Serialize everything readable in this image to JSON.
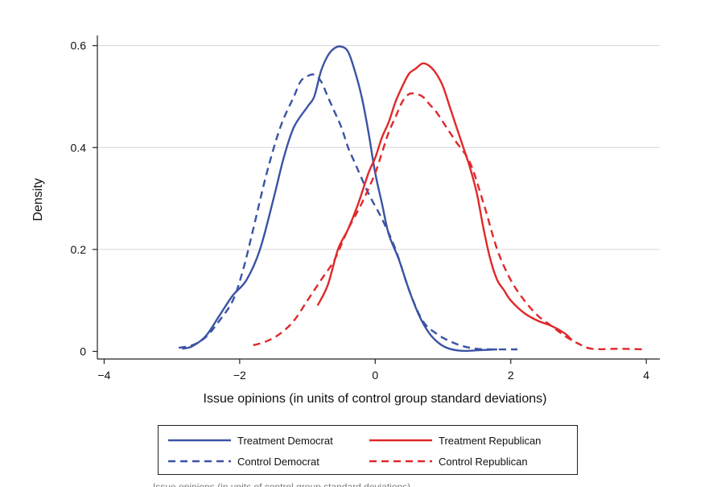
{
  "chart_data": {
    "type": "line",
    "title": "",
    "xlabel": "Issue opinions (in units of control group standard deviations)",
    "ylabel": "Density",
    "xlim": [
      -4.1,
      4.2
    ],
    "ylim": [
      -0.015,
      0.62
    ],
    "x_ticks": [
      -4,
      -2,
      0,
      2,
      4
    ],
    "x_tick_labels": [
      "−4",
      "−2",
      "0",
      "2",
      "4"
    ],
    "y_ticks": [
      0,
      0.2,
      0.4,
      0.6
    ],
    "y_tick_labels": [
      "0",
      "0.2",
      "0.4",
      "0.6"
    ],
    "grid": "horizontal",
    "legend_position": "bottom",
    "series": [
      {
        "name": "Treatment Democrat",
        "color": "#3b53a4",
        "style": "solid",
        "x": [
          -2.85,
          -2.7,
          -2.5,
          -2.3,
          -2.1,
          -1.9,
          -1.7,
          -1.5,
          -1.35,
          -1.2,
          -1.0,
          -0.9,
          -0.8,
          -0.7,
          -0.6,
          -0.5,
          -0.4,
          -0.3,
          -0.2,
          -0.1,
          0.0,
          0.1,
          0.2,
          0.35,
          0.5,
          0.65,
          0.8,
          0.95,
          1.1,
          1.3,
          1.5,
          1.8
        ],
        "y": [
          0.005,
          0.01,
          0.03,
          0.07,
          0.11,
          0.14,
          0.2,
          0.3,
          0.38,
          0.44,
          0.48,
          0.5,
          0.55,
          0.58,
          0.595,
          0.598,
          0.588,
          0.55,
          0.5,
          0.43,
          0.35,
          0.29,
          0.23,
          0.18,
          0.12,
          0.07,
          0.035,
          0.015,
          0.005,
          0.001,
          0.002,
          0.004
        ]
      },
      {
        "name": "Control Democrat",
        "color": "#3b53a4",
        "style": "dashed",
        "x": [
          -2.9,
          -2.7,
          -2.5,
          -2.3,
          -2.1,
          -1.95,
          -1.8,
          -1.6,
          -1.4,
          -1.2,
          -1.1,
          -1.0,
          -0.9,
          -0.8,
          -0.7,
          -0.6,
          -0.5,
          -0.4,
          -0.3,
          -0.1,
          0.1,
          0.3,
          0.5,
          0.7,
          0.9,
          1.1,
          1.3,
          1.5,
          1.7,
          2.1
        ],
        "y": [
          0.007,
          0.012,
          0.028,
          0.06,
          0.1,
          0.16,
          0.24,
          0.35,
          0.44,
          0.5,
          0.53,
          0.54,
          0.543,
          0.53,
          0.5,
          0.47,
          0.44,
          0.4,
          0.37,
          0.31,
          0.26,
          0.2,
          0.12,
          0.06,
          0.035,
          0.02,
          0.01,
          0.005,
          0.004,
          0.004
        ]
      },
      {
        "name": "Treatment Republican",
        "color": "#e0282a",
        "style": "solid",
        "x": [
          -0.85,
          -0.7,
          -0.55,
          -0.4,
          -0.25,
          -0.1,
          0.0,
          0.1,
          0.2,
          0.3,
          0.4,
          0.5,
          0.6,
          0.7,
          0.8,
          0.9,
          1.0,
          1.1,
          1.2,
          1.3,
          1.4,
          1.5,
          1.6,
          1.7,
          1.8,
          1.9,
          2.0,
          2.2,
          2.4,
          2.6,
          2.8,
          2.9
        ],
        "y": [
          0.09,
          0.13,
          0.2,
          0.24,
          0.29,
          0.35,
          0.38,
          0.42,
          0.45,
          0.49,
          0.52,
          0.545,
          0.555,
          0.565,
          0.56,
          0.545,
          0.52,
          0.48,
          0.44,
          0.4,
          0.36,
          0.31,
          0.24,
          0.18,
          0.14,
          0.12,
          0.1,
          0.075,
          0.06,
          0.05,
          0.035,
          0.022
        ]
      },
      {
        "name": "Control Republican",
        "color": "#e0282a",
        "style": "dashed",
        "x": [
          -1.8,
          -1.6,
          -1.4,
          -1.2,
          -1.0,
          -0.8,
          -0.6,
          -0.4,
          -0.2,
          0.0,
          0.1,
          0.2,
          0.3,
          0.4,
          0.5,
          0.6,
          0.7,
          0.8,
          0.9,
          1.0,
          1.1,
          1.2,
          1.4,
          1.6,
          1.8,
          2.0,
          2.2,
          2.4,
          2.6,
          2.8,
          3.0,
          3.2,
          3.6,
          4.0
        ],
        "y": [
          0.012,
          0.02,
          0.035,
          0.06,
          0.1,
          0.14,
          0.18,
          0.24,
          0.29,
          0.35,
          0.39,
          0.43,
          0.46,
          0.49,
          0.505,
          0.505,
          0.5,
          0.485,
          0.47,
          0.45,
          0.43,
          0.41,
          0.37,
          0.29,
          0.2,
          0.14,
          0.1,
          0.07,
          0.05,
          0.03,
          0.015,
          0.005,
          0.005,
          0.004
        ]
      }
    ]
  },
  "footnote": "Issue opinions (in units of control group standard deviations)"
}
